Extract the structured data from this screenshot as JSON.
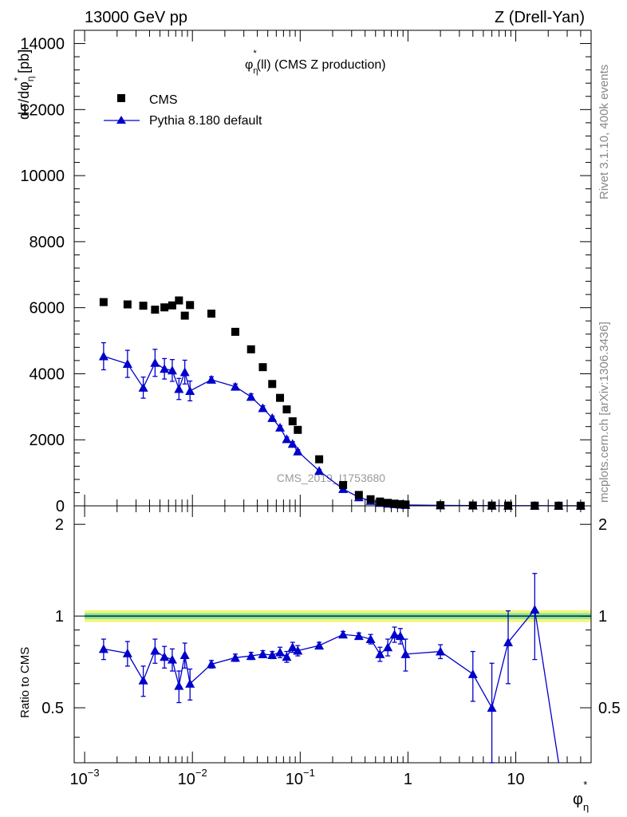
{
  "header": {
    "left": "13000 GeV pp",
    "right": "Z (Drell-Yan)"
  },
  "side_labels": {
    "rivet": "Rivet 3.1.10,  400k events",
    "mcplots": "mcplots.cern.ch [arXiv:1306.3436]"
  },
  "watermark": "CMS_2019_I1753680",
  "plot_title": {
    "base": "φ",
    "sub": "η",
    "sup": "*",
    "rest": "(ll) (CMS Z production)"
  },
  "axes": {
    "x_label": {
      "base": "φ",
      "sub": "η",
      "sup": "*"
    },
    "main_y_label": "dσ/dφ*η [pb]",
    "main_y_label_parts": {
      "pre": "dσ/dφ",
      "sub": "η",
      "sup": "*",
      "post": " [pb]"
    },
    "ratio_y_label": "Ratio to CMS",
    "x_ticks": [
      {
        "value": 0.001,
        "base": "10",
        "exp": "−3"
      },
      {
        "value": 0.01,
        "base": "10",
        "exp": "−2"
      },
      {
        "value": 0.1,
        "base": "10",
        "exp": "−1"
      },
      {
        "value": 1,
        "base": "1",
        "exp": ""
      },
      {
        "value": 10,
        "base": "10",
        "exp": ""
      }
    ],
    "main_y_ticks": [
      "0",
      "2000",
      "4000",
      "6000",
      "8000",
      "10000",
      "12000",
      "14000"
    ],
    "ratio_y_ticks": [
      "0.5",
      "1",
      "2"
    ]
  },
  "legend": {
    "cms_label": "CMS",
    "mc_label": "Pythia 8.180 default"
  },
  "colors": {
    "cms": "#000000",
    "mc": "#0000cc",
    "band_inner": "#7fe3a6",
    "band_outer": "#f4f57a"
  },
  "chart_data": [
    {
      "type": "scatter",
      "title": "φ*η(ll) (CMS Z production)",
      "xlabel": "φ*η",
      "ylabel": "dσ/dφ*η [pb]",
      "x_scale": "log",
      "xlim": [
        0.0008,
        50
      ],
      "ylim": [
        0,
        14400
      ],
      "legend_position": "top-left",
      "x": [
        0.0015,
        0.0025,
        0.0035,
        0.0045,
        0.0055,
        0.0065,
        0.0075,
        0.0085,
        0.0095,
        0.015,
        0.025,
        0.035,
        0.045,
        0.055,
        0.065,
        0.075,
        0.085,
        0.095,
        0.15,
        0.25,
        0.35,
        0.45,
        0.55,
        0.65,
        0.75,
        0.85,
        0.95,
        2,
        4,
        6,
        8.5,
        15,
        25,
        40
      ],
      "series": [
        {
          "name": "CMS",
          "marker": "square",
          "values": [
            6170,
            6100,
            6060,
            5940,
            6010,
            6070,
            6220,
            5760,
            6080,
            5820,
            5270,
            4740,
            4200,
            3690,
            3270,
            2920,
            2560,
            2300,
            1410,
            630,
            330,
            200,
            130,
            90,
            65,
            50,
            40,
            20,
            12,
            9,
            7,
            5,
            4,
            3
          ]
        },
        {
          "name": "Pythia 8.180 default",
          "marker": "triangle",
          "values": [
            4530,
            4300,
            3580,
            4330,
            4150,
            4100,
            3540,
            4050,
            3480,
            3820,
            3610,
            3300,
            2960,
            2660,
            2370,
            2020,
            1880,
            1650,
            1060,
            510,
            260,
            150,
            90,
            65,
            52,
            40,
            28,
            15,
            8,
            5,
            5,
            4,
            3,
            2
          ],
          "errors": [
            410,
            410,
            320,
            410,
            310,
            330,
            320,
            360,
            300,
            90,
            80,
            90,
            70,
            60,
            60,
            60,
            60,
            50,
            40,
            30,
            20,
            15,
            12,
            10,
            9,
            8,
            6,
            4,
            3,
            2,
            2,
            2,
            1,
            1
          ]
        }
      ]
    },
    {
      "type": "line",
      "title": "",
      "xlabel": "φ*η",
      "ylabel": "Ratio to CMS",
      "x_scale": "log",
      "xlim": [
        0.0008,
        50
      ],
      "ylim": [
        0.33,
        2.3
      ],
      "x": [
        0.0015,
        0.0025,
        0.0035,
        0.0045,
        0.0055,
        0.0065,
        0.0075,
        0.0085,
        0.0095,
        0.015,
        0.025,
        0.035,
        0.045,
        0.055,
        0.065,
        0.075,
        0.085,
        0.095,
        0.15,
        0.25,
        0.35,
        0.45,
        0.55,
        0.65,
        0.75,
        0.85,
        0.95,
        2,
        4,
        6,
        8.5,
        15,
        25
      ],
      "series": [
        {
          "name": "Pythia 8.180 default",
          "values": [
            0.78,
            0.755,
            0.615,
            0.77,
            0.735,
            0.72,
            0.59,
            0.745,
            0.6,
            0.695,
            0.73,
            0.74,
            0.75,
            0.745,
            0.76,
            0.735,
            0.79,
            0.77,
            0.8,
            0.87,
            0.86,
            0.84,
            0.75,
            0.79,
            0.87,
            0.86,
            0.75,
            0.765,
            0.645,
            0.5,
            0.82,
            1.05,
            0.23
          ],
          "errors": [
            0.06,
            0.07,
            0.07,
            0.07,
            0.06,
            0.06,
            0.07,
            0.07,
            0.07,
            0.02,
            0.02,
            0.02,
            0.02,
            0.02,
            0.03,
            0.03,
            0.03,
            0.03,
            0.02,
            0.02,
            0.02,
            0.03,
            0.04,
            0.05,
            0.05,
            0.05,
            0.09,
            0.04,
            0.12,
            0.2,
            0.22,
            0.33,
            0.05
          ]
        }
      ],
      "reference": {
        "value": 1,
        "inner_band": 0.022,
        "outer_band": 0.045
      }
    }
  ]
}
